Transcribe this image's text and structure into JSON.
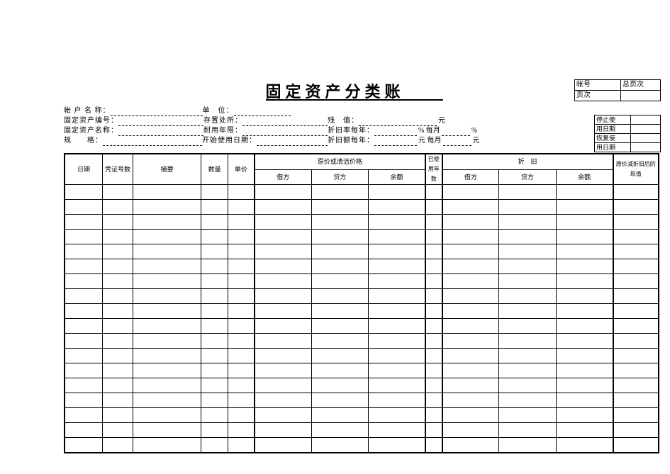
{
  "title": "固定资产分类账",
  "topbox": {
    "r1l": "帐号",
    "r1r": "总页次",
    "r2l": "页次",
    "r2r": ""
  },
  "meta": {
    "l1a": "帐 户 名 称：",
    "l1b": "单　位：",
    "l2a": "固定资产编号：",
    "l2b": "存置处所：",
    "l2c": "残　值：",
    "l2d": "元",
    "l3a": "固定资产名称：",
    "l3b": "耐用年限：",
    "l3c": "折旧率每年：",
    "l3d": "% 每月",
    "l3e": "%",
    "l4a": "规　　格：",
    "l4b": "开始使用日期：",
    "l4c": "折旧额每年：",
    "l4d": "元 每月",
    "l4e": "元"
  },
  "sidebox": {
    "r1": "停止使",
    "r2": "用日期",
    "r3": "恢复使",
    "r4": "用日期"
  },
  "columns": {
    "date": "日期",
    "voucher": "凭证号数",
    "summary": "摘要",
    "qty": "数量",
    "price": "单价",
    "orig_group": "原价或清洁价格",
    "debit": "借方",
    "credit": "贷方",
    "balance": "余额",
    "used": "已使用年数",
    "dep_group": "折　旧",
    "net": "原价减折旧后的现值"
  },
  "body_rows": 18
}
